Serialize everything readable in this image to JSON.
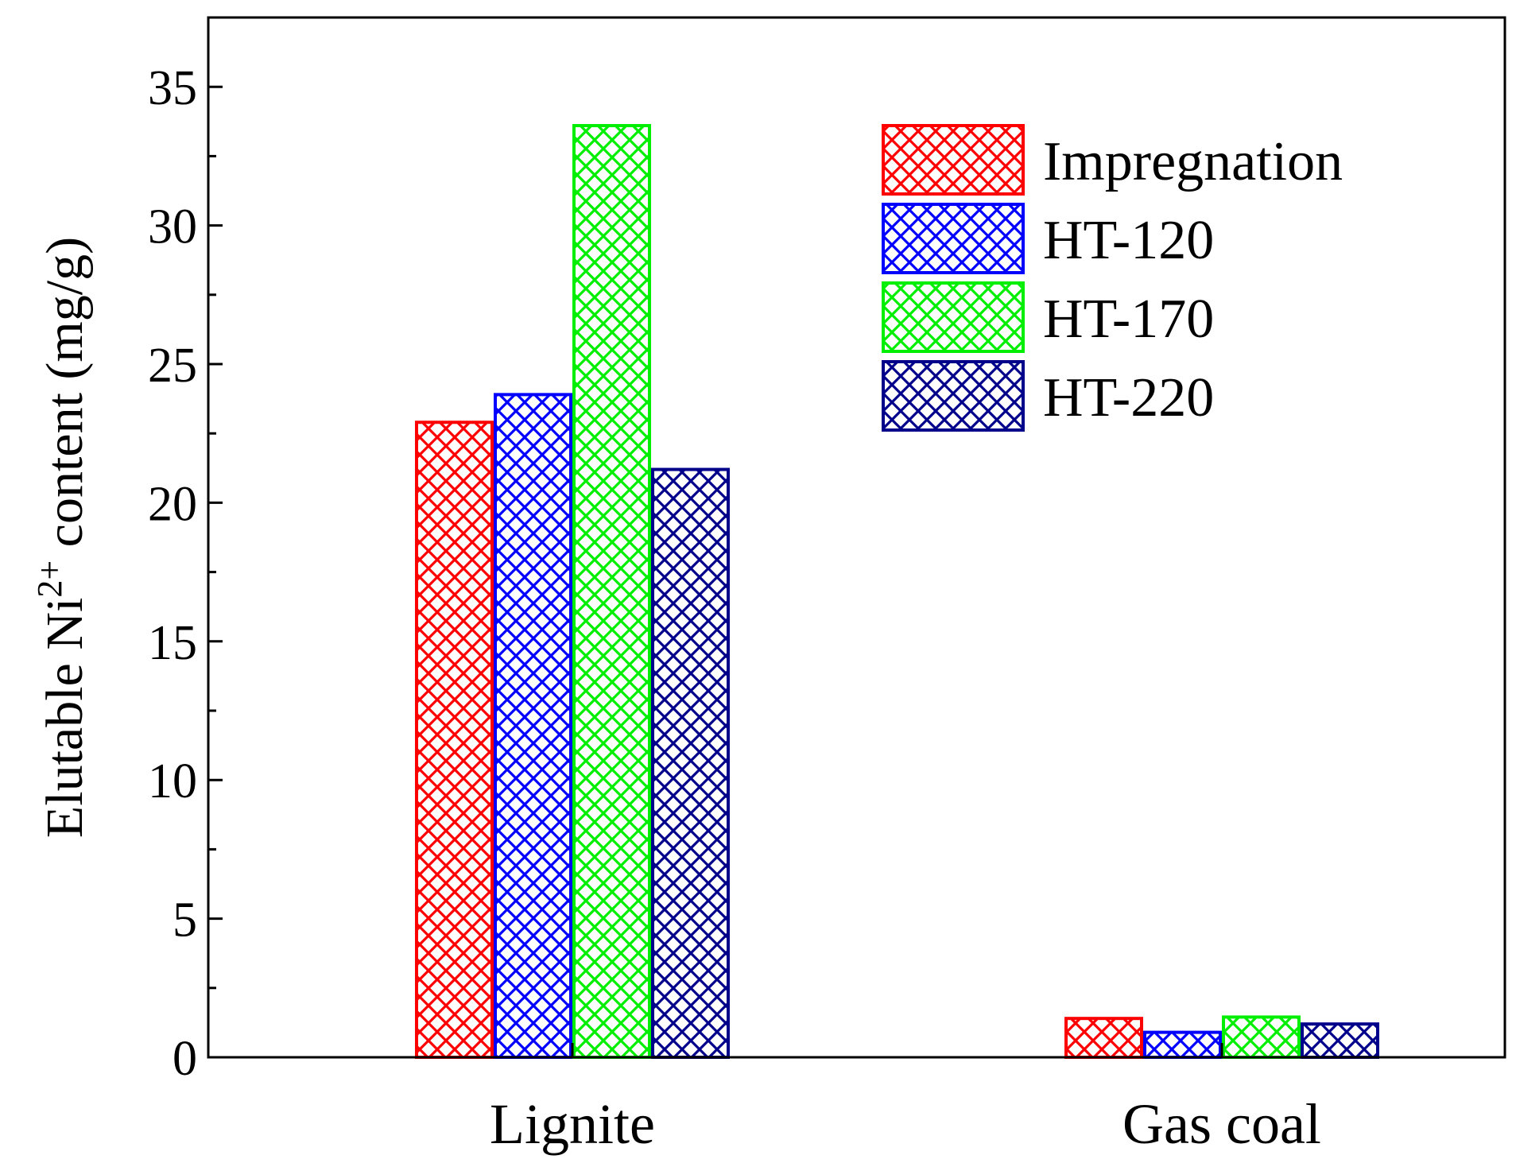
{
  "chart_data": {
    "type": "bar",
    "title": "",
    "xlabel": "",
    "ylabel": "Elutable Ni2+ content (mg/g)",
    "ylabel_parts": {
      "before": "Elutable Ni",
      "superscript": "2+",
      "after": " content (mg/g)"
    },
    "ylim": [
      0,
      37.5
    ],
    "yticks": [
      "0",
      "5",
      "10",
      "15",
      "20",
      "25",
      "30",
      "35"
    ],
    "categories": [
      "Lignite",
      "Gas coal"
    ],
    "series": [
      {
        "name": "Impregnation",
        "color": "#ff0000",
        "values": [
          22.9,
          1.4
        ]
      },
      {
        "name": "HT-120",
        "color": "#0000ff",
        "values": [
          23.9,
          0.9
        ]
      },
      {
        "name": "HT-170",
        "color": "#00ee00",
        "values": [
          33.6,
          1.45
        ]
      },
      {
        "name": "HT-220",
        "color": "#00008b",
        "values": [
          21.2,
          1.2
        ]
      }
    ],
    "legend_position": "top-right",
    "grid": false
  }
}
